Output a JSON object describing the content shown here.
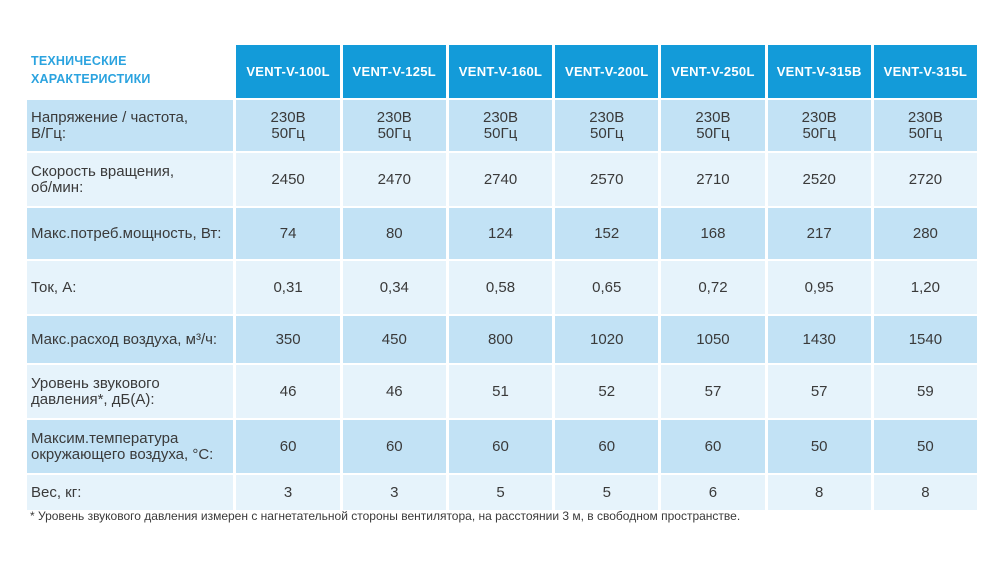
{
  "table": {
    "header_label": "ТЕХНИЧЕСКИЕ\nХАРАКТЕРИСТИКИ",
    "models": [
      "VENT-V-100L",
      "VENT-V-125L",
      "VENT-V-160L",
      "VENT-V-200L",
      "VENT-V-250L",
      "VENT-V-315B",
      "VENT-V-315L"
    ],
    "rows": [
      {
        "label": "Напряжение / частота,\nВ/Гц:",
        "values": [
          "230В\n50Гц",
          "230В\n50Гц",
          "230В\n50Гц",
          "230В\n50Гц",
          "230В\n50Гц",
          "230В\n50Гц",
          "230В\n50Гц"
        ]
      },
      {
        "label": "Скорость вращения,\nоб/мин:",
        "values": [
          "2450",
          "2470",
          "2740",
          "2570",
          "2710",
          "2520",
          "2720"
        ]
      },
      {
        "label": "Макс.потреб.мощность, Вт:",
        "values": [
          "74",
          "80",
          "124",
          "152",
          "168",
          "217",
          "280"
        ]
      },
      {
        "label": "Ток, А:",
        "values": [
          "0,31",
          "0,34",
          "0,58",
          "0,65",
          "0,72",
          "0,95",
          "1,20"
        ]
      },
      {
        "label": "Макс.расход воздуха, м³/ч:",
        "values": [
          "350",
          "450",
          "800",
          "1020",
          "1050",
          "1430",
          "1540"
        ]
      },
      {
        "label": "Уровень звукового\nдавления*, дБ(А):",
        "values": [
          "46",
          "46",
          "51",
          "52",
          "57",
          "57",
          "59"
        ]
      },
      {
        "label": "Максим.температура\nокружающего воздуха, °С:",
        "values": [
          "60",
          "60",
          "60",
          "60",
          "60",
          "50",
          "50"
        ]
      },
      {
        "label": "Вес, кг:",
        "values": [
          "3",
          "3",
          "5",
          "5",
          "6",
          "8",
          "8"
        ]
      }
    ],
    "footnote": "* Уровень звукового давления измерен с нагнетательной стороны вентилятора, на расстоянии 3 м, в свободном пространстве."
  },
  "colors": {
    "header_bg": "#139bd9",
    "header_label": "#2ba3df",
    "row_dark": "#c2e2f5",
    "row_light": "#e6f3fb",
    "text": "#3a3a3a"
  }
}
